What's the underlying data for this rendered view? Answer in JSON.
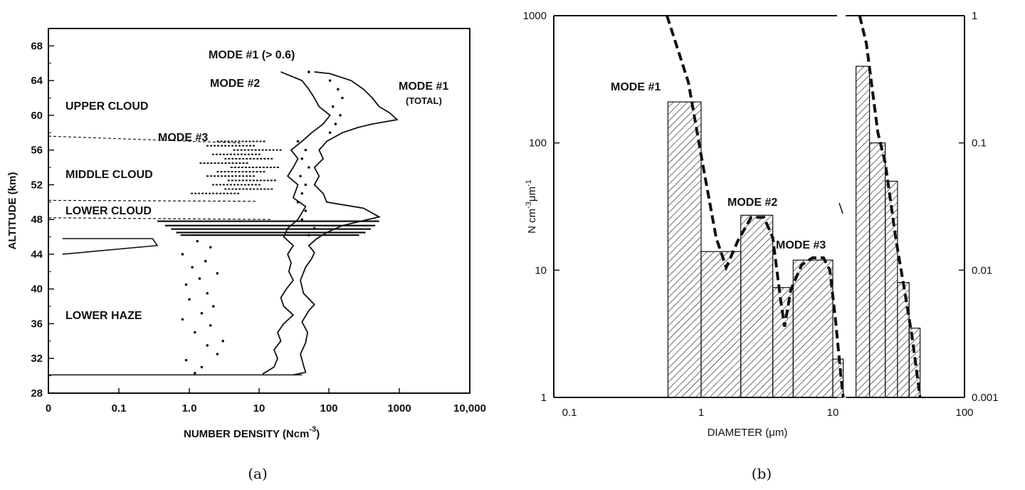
{
  "chart_data": [
    {
      "panel": "(a)",
      "type": "line",
      "xlabel": "NUMBER DENSITY (Ncm-3)",
      "xlabel_main": "NUMBER DENSITY (Ncm",
      "xlabel_sup": "-3",
      "xlabel_tail": ")",
      "ylabel": "ALTITUDE (km)",
      "x_ticks": [
        "0",
        "0.1",
        "1.0",
        "10",
        "100",
        "1000",
        "10,000"
      ],
      "y_ticks": [
        "28",
        "32",
        "36",
        "40",
        "44",
        "48",
        "52",
        "56",
        "60",
        "64",
        "68"
      ],
      "ylim": [
        28,
        70
      ],
      "region_labels": [
        "UPPER CLOUD",
        "MIDDLE CLOUD",
        "LOWER CLOUD",
        "LOWER HAZE"
      ],
      "boundaries_km": [
        57.6,
        50.2,
        48.2
      ],
      "annotations": {
        "mode1_gt": "MODE #1 (> 0.6)",
        "mode2": "MODE #2",
        "mode1_total": "MODE #1",
        "mode1_total_sub": "(TOTAL)",
        "mode3": "MODE #3"
      },
      "series": [
        {
          "name": "MODE #1 (TOTAL)",
          "style": "solid",
          "points": [
            [
              30,
              30.1
            ],
            [
              45,
              30.4
            ],
            [
              42,
              31.2
            ],
            [
              38,
              32.5
            ],
            [
              45,
              33.8
            ],
            [
              48,
              35
            ],
            [
              40,
              36.2
            ],
            [
              50,
              37.5
            ],
            [
              60,
              38.2
            ],
            [
              42,
              39.5
            ],
            [
              38,
              41
            ],
            [
              45,
              42.5
            ],
            [
              55,
              43.5
            ],
            [
              60,
              44.2
            ],
            [
              50,
              45
            ],
            [
              65,
              45.8
            ],
            [
              90,
              46.5
            ],
            [
              150,
              47.3
            ],
            [
              500,
              48.3
            ],
            [
              300,
              49.3
            ],
            [
              90,
              50
            ],
            [
              80,
              51
            ],
            [
              60,
              52
            ],
            [
              70,
              53
            ],
            [
              60,
              54
            ],
            [
              80,
              55
            ],
            [
              70,
              56
            ],
            [
              90,
              57
            ],
            [
              150,
              58
            ],
            [
              250,
              58.6
            ],
            [
              400,
              59
            ],
            [
              900,
              59.5
            ],
            [
              700,
              60.3
            ],
            [
              500,
              61
            ],
            [
              400,
              62
            ],
            [
              300,
              63
            ],
            [
              200,
              64
            ],
            [
              100,
              64.8
            ],
            [
              60,
              65
            ]
          ]
        },
        {
          "name": "MODE #2",
          "style": "solid",
          "points": [
            [
              11,
              30.2
            ],
            [
              16,
              31
            ],
            [
              18,
              32
            ],
            [
              16,
              33
            ],
            [
              20,
              34
            ],
            [
              18,
              35
            ],
            [
              22,
              36
            ],
            [
              30,
              37
            ],
            [
              22,
              38
            ],
            [
              20,
              39
            ],
            [
              24,
              40
            ],
            [
              30,
              41
            ],
            [
              26,
              42
            ],
            [
              28,
              43
            ],
            [
              25,
              44
            ],
            [
              30,
              45
            ],
            [
              22,
              46
            ],
            [
              25,
              47
            ],
            [
              35,
              48
            ],
            [
              45,
              49.5
            ],
            [
              30,
              50.5
            ],
            [
              35,
              52
            ],
            [
              25,
              53
            ],
            [
              30,
              54
            ],
            [
              35,
              55
            ],
            [
              28,
              56
            ],
            [
              40,
              57
            ],
            [
              55,
              58
            ],
            [
              80,
              59
            ],
            [
              100,
              60
            ],
            [
              70,
              61
            ],
            [
              60,
              62
            ],
            [
              50,
              63
            ],
            [
              40,
              64
            ],
            [
              20,
              65
            ]
          ]
        },
        {
          "name": "MODE #1 (> 0.6)",
          "style": "dots",
          "points": [
            [
              1.2,
              30.3
            ],
            [
              1.5,
              31
            ],
            [
              0.9,
              31.8
            ],
            [
              2.5,
              32.5
            ],
            [
              1.8,
              33.5
            ],
            [
              3,
              34
            ],
            [
              1.2,
              35
            ],
            [
              2,
              35.8
            ],
            [
              0.8,
              36.5
            ],
            [
              1.5,
              37.2
            ],
            [
              2.2,
              38
            ],
            [
              1,
              38.8
            ],
            [
              1.8,
              39.5
            ],
            [
              0.9,
              40.5
            ],
            [
              1.4,
              41.2
            ],
            [
              2.5,
              41.8
            ],
            [
              1.1,
              42.5
            ],
            [
              1.7,
              43.2
            ],
            [
              0.8,
              44
            ],
            [
              2,
              44.8
            ],
            [
              1.3,
              45.5
            ],
            [
              50,
              46.2
            ],
            [
              60,
              47
            ],
            [
              40,
              48
            ],
            [
              45,
              49
            ],
            [
              35,
              50
            ],
            [
              40,
              51
            ],
            [
              45,
              52
            ],
            [
              38,
              53
            ],
            [
              50,
              54
            ],
            [
              40,
              55
            ],
            [
              45,
              56
            ],
            [
              35,
              57
            ],
            [
              100,
              58
            ],
            [
              120,
              59
            ],
            [
              140,
              60
            ],
            [
              110,
              61
            ],
            [
              150,
              62
            ],
            [
              130,
              63
            ],
            [
              100,
              64
            ],
            [
              50,
              65
            ]
          ]
        },
        {
          "name": "MODE #3",
          "style": "dashes",
          "points": [
            [
              7,
              57
            ],
            [
              5,
              56.5
            ],
            [
              12,
              56
            ],
            [
              6,
              55.5
            ],
            [
              9,
              55
            ],
            [
              4,
              54.5
            ],
            [
              11,
              54
            ],
            [
              7,
              53.5
            ],
            [
              5,
              53
            ],
            [
              10,
              52.5
            ],
            [
              6,
              52
            ],
            [
              9,
              51.5
            ],
            [
              3,
              51
            ]
          ]
        }
      ]
    },
    {
      "panel": "(b)",
      "type": "bar",
      "xlabel": "DIAMETER (μm)",
      "ylabel": "N cm-3μm-1",
      "x_ticks": [
        "0.1",
        "1",
        "10",
        "100"
      ],
      "y_ticks_left": [
        "1",
        "10",
        "100",
        "1000"
      ],
      "y_ticks_right": [
        "0.001",
        "0.01",
        "0.1",
        "1"
      ],
      "xlim": [
        0.1,
        100
      ],
      "ylim": [
        1,
        1000
      ],
      "annotations": [
        "MODE #1",
        "MODE #2",
        "MODE #3"
      ],
      "bars_left": [
        {
          "x0": 0.56,
          "x1": 1.0,
          "value": 210
        },
        {
          "x0": 1.0,
          "x1": 2.0,
          "value": 14
        },
        {
          "x0": 2.0,
          "x1": 3.5,
          "value": 27
        },
        {
          "x0": 3.5,
          "x1": 5.0,
          "value": 7.3
        },
        {
          "x0": 5.0,
          "x1": 10.0,
          "value": 12
        },
        {
          "x0": 10.0,
          "x1": 12.0,
          "value": 2
        }
      ],
      "bars_right": [
        {
          "x0": 15,
          "x1": 19,
          "value": 0.4
        },
        {
          "x0": 19,
          "x1": 25,
          "value": 0.1
        },
        {
          "x0": 25,
          "x1": 31,
          "value": 0.05
        },
        {
          "x0": 31,
          "x1": 38,
          "value": 0.008
        },
        {
          "x0": 38,
          "x1": 46,
          "value": 0.0035
        }
      ],
      "fit_left": [
        [
          0.55,
          1000
        ],
        [
          0.8,
          300
        ],
        [
          1.0,
          80
        ],
        [
          1.3,
          18
        ],
        [
          1.55,
          10.5
        ],
        [
          1.9,
          17
        ],
        [
          2.4,
          26
        ],
        [
          3.0,
          26
        ],
        [
          3.5,
          18
        ],
        [
          4.0,
          6
        ],
        [
          4.3,
          3.6
        ],
        [
          4.8,
          7
        ],
        [
          5.8,
          11
        ],
        [
          7,
          12.5
        ],
        [
          8.5,
          12.5
        ],
        [
          9.5,
          10
        ],
        [
          10.5,
          4
        ],
        [
          11.5,
          1.5
        ],
        [
          12,
          1
        ]
      ],
      "fit_right": [
        [
          16,
          1
        ],
        [
          18,
          0.6
        ],
        [
          22,
          0.12
        ],
        [
          25,
          0.07
        ],
        [
          30,
          0.018
        ],
        [
          35,
          0.007
        ],
        [
          40,
          0.003
        ],
        [
          46,
          0.001
        ]
      ]
    }
  ],
  "captions": [
    "(a)",
    "(b)"
  ]
}
